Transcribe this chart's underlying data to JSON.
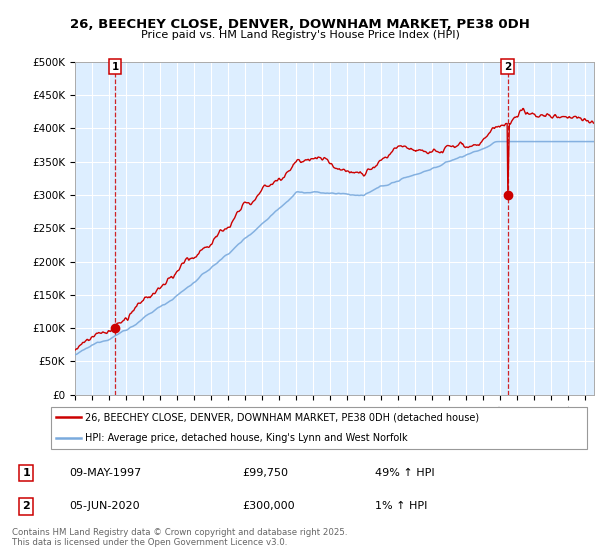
{
  "title_line1": "26, BEECHEY CLOSE, DENVER, DOWNHAM MARKET, PE38 0DH",
  "title_line2": "Price paid vs. HM Land Registry's House Price Index (HPI)",
  "ylabel_ticks": [
    "£0",
    "£50K",
    "£100K",
    "£150K",
    "£200K",
    "£250K",
    "£300K",
    "£350K",
    "£400K",
    "£450K",
    "£500K"
  ],
  "ytick_values": [
    0,
    50000,
    100000,
    150000,
    200000,
    250000,
    300000,
    350000,
    400000,
    450000,
    500000
  ],
  "xlim": [
    1995.0,
    2025.5
  ],
  "ylim": [
    0,
    500000
  ],
  "xticks": [
    1995,
    1996,
    1997,
    1998,
    1999,
    2000,
    2001,
    2002,
    2003,
    2004,
    2005,
    2006,
    2007,
    2008,
    2009,
    2010,
    2011,
    2012,
    2013,
    2014,
    2015,
    2016,
    2017,
    2018,
    2019,
    2020,
    2021,
    2022,
    2023,
    2024,
    2025
  ],
  "marker1_x": 1997.35,
  "marker1_y": 99750,
  "marker2_x": 2020.43,
  "marker2_y": 300000,
  "legend_line1": "26, BEECHEY CLOSE, DENVER, DOWNHAM MARKET, PE38 0DH (detached house)",
  "legend_line2": "HPI: Average price, detached house, King's Lynn and West Norfolk",
  "footer": "Contains HM Land Registry data © Crown copyright and database right 2025.\nThis data is licensed under the Open Government Licence v3.0.",
  "line_color_red": "#cc0000",
  "line_color_blue": "#7aaadd",
  "bg_color": "#ddeeff",
  "grid_color": "#ffffff"
}
